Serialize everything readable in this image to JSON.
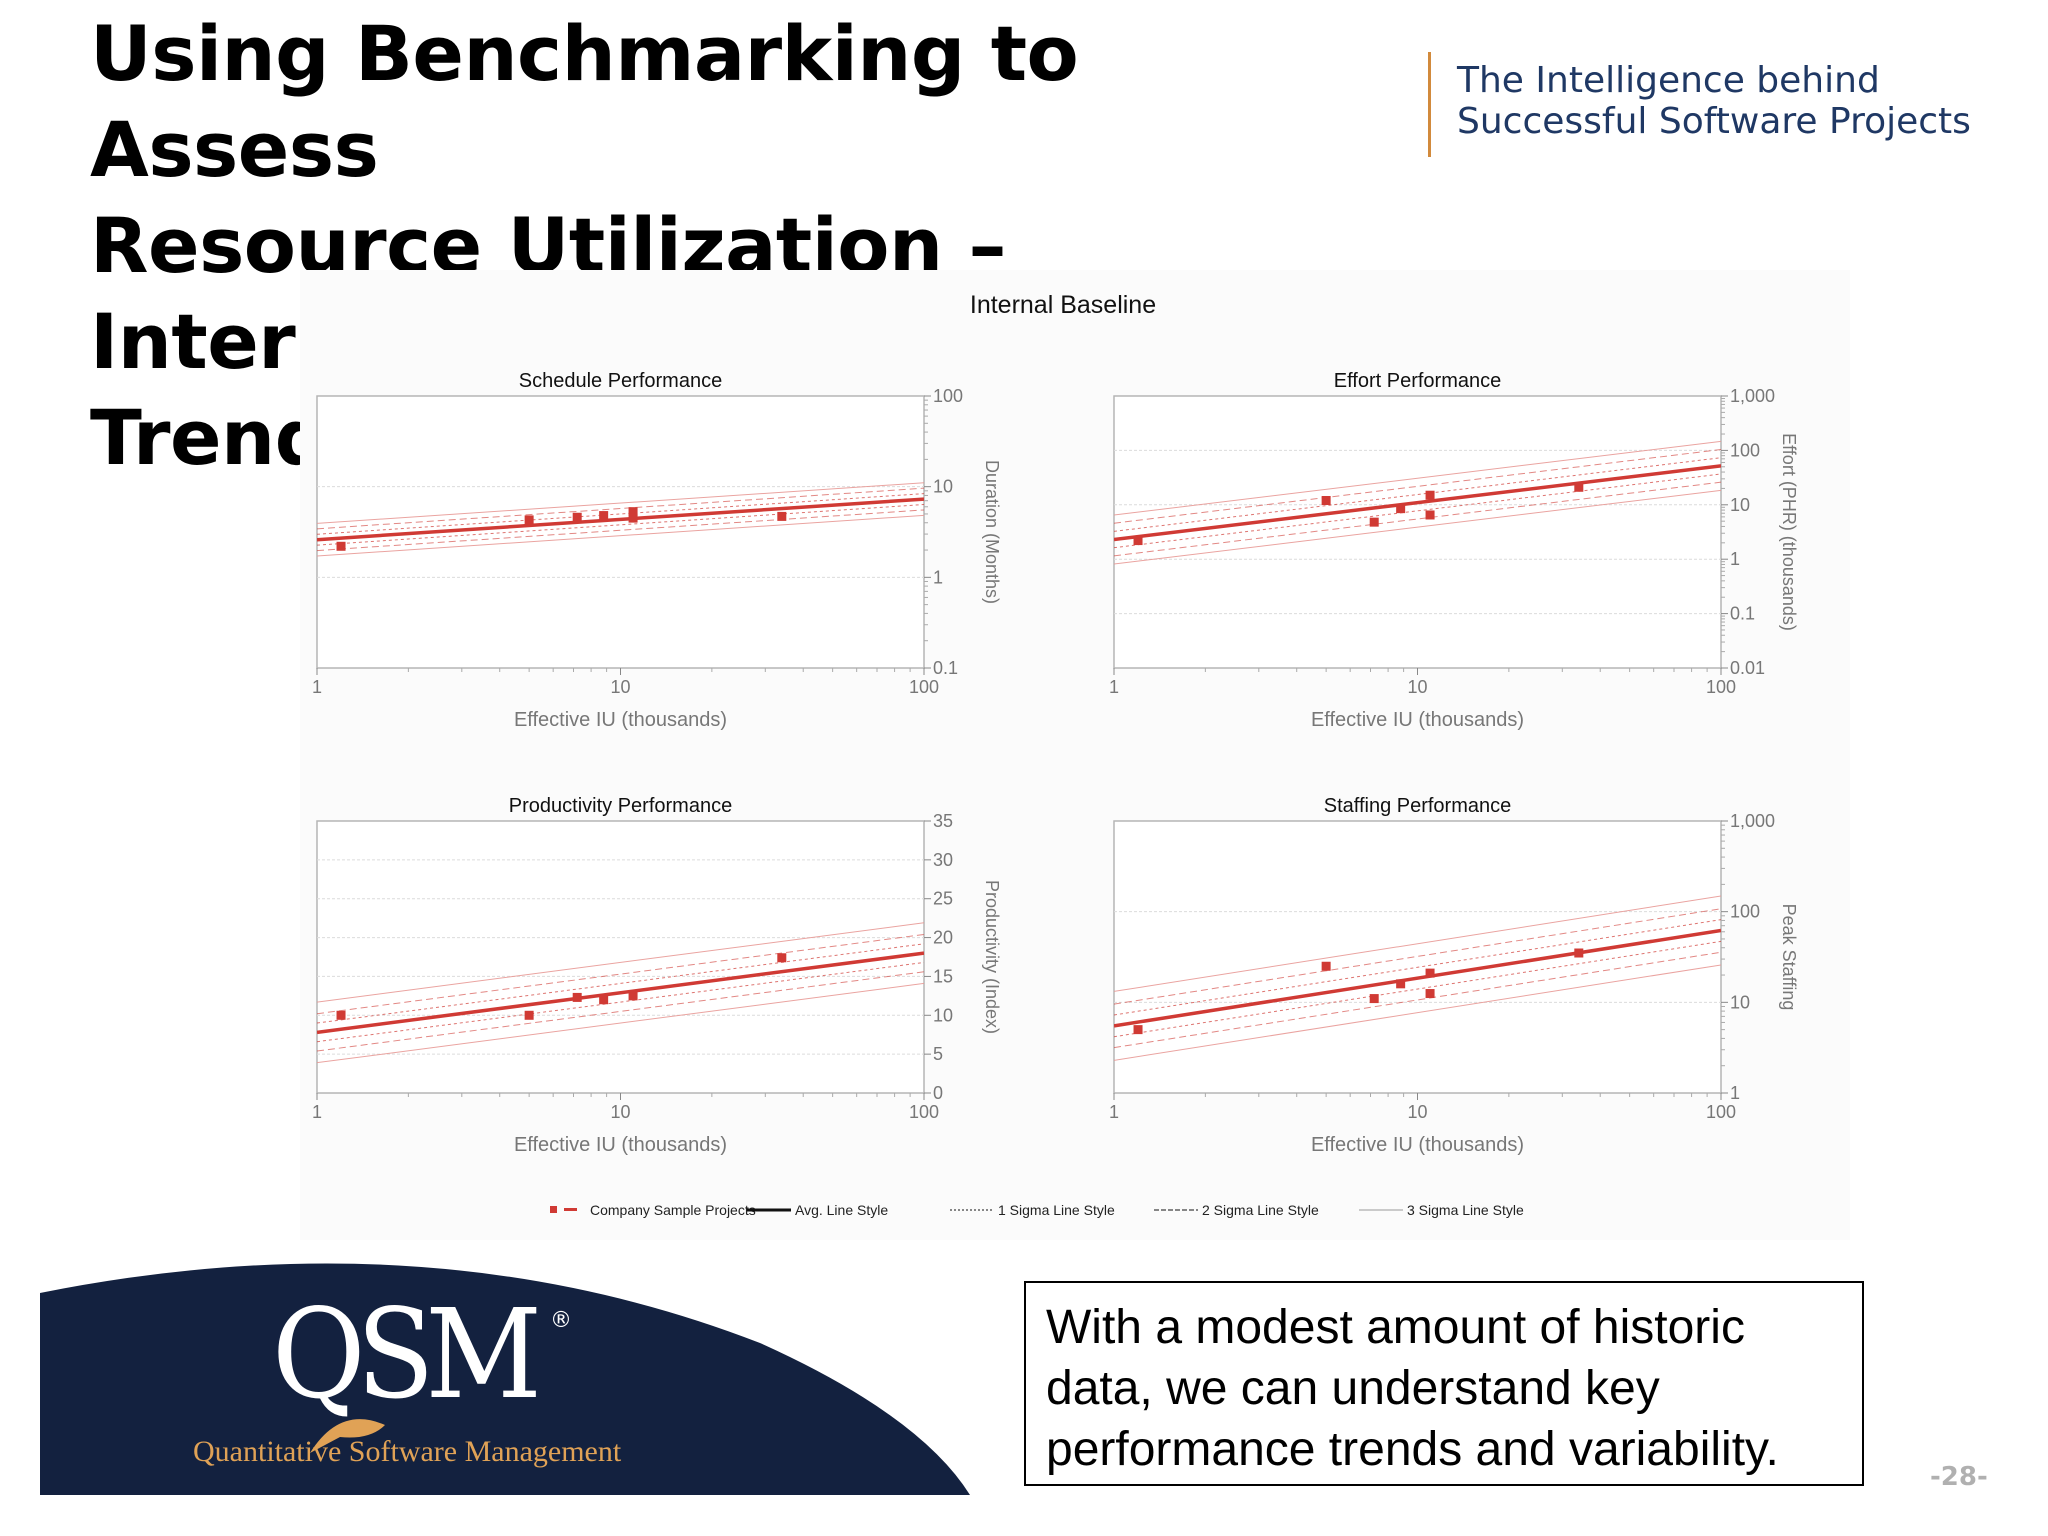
{
  "slide": {
    "title_lines": [
      "Using Benchmarking to Assess",
      "Resource Utilization – Internal",
      "Trends"
    ],
    "tagline_lines": [
      "The Intelligence behind",
      "Successful Software Projects"
    ],
    "note_lines": [
      "With a modest amount of historic",
      "data, we can understand key",
      "performance trends and variability."
    ],
    "page_number": "-28-",
    "logo": {
      "text": "QSM",
      "registered": "®",
      "subtitle": "Quantitative Software Management"
    },
    "colors": {
      "title": "#000000",
      "tagline": "#1f3864",
      "accent_bar": "#d28a3c",
      "logo_bg": "#13213f",
      "logo_sub": "#e0a256",
      "data": "#d03a34"
    }
  },
  "chart_data": {
    "title": "Internal Baseline",
    "legend": [
      {
        "label": "Company Sample Projects",
        "style": "points"
      },
      {
        "label": "Avg. Line Style",
        "style": "avg"
      },
      {
        "label": "1 Sigma Line Style",
        "style": "sigma1"
      },
      {
        "label": "2 Sigma Line Style",
        "style": "sigma2"
      },
      {
        "label": "3 Sigma Line Style",
        "style": "sigma3"
      }
    ],
    "legend_position": "bottom",
    "charts": [
      {
        "type": "scatter",
        "title": "Schedule Performance",
        "xlabel": "Effective IU (thousands)",
        "ylabel": "Duration (Months)",
        "xscale": "log",
        "yscale": "log",
        "xlim": [
          1,
          100
        ],
        "ylim": [
          0.1,
          100
        ],
        "xticks": [
          {
            "v": 1,
            "label": "1"
          },
          {
            "v": 10,
            "label": "10"
          },
          {
            "v": 100,
            "label": "100"
          }
        ],
        "yticks": [
          {
            "v": 0.1,
            "label": "0.1"
          },
          {
            "v": 1,
            "label": "1"
          },
          {
            "v": 10,
            "label": "10"
          },
          {
            "v": 100,
            "label": "100"
          }
        ],
        "points": [
          [
            1.2,
            2.2
          ],
          [
            5,
            4.3
          ],
          [
            7.2,
            4.6
          ],
          [
            8.8,
            4.8
          ],
          [
            11,
            5.3
          ],
          [
            11,
            4.5
          ],
          [
            34,
            4.7
          ]
        ],
        "trend": {
          "x": [
            1,
            100
          ],
          "avg": [
            2.6,
            7.3
          ],
          "sigma_offsets": [
            0.06,
            0.12,
            0.18
          ]
        }
      },
      {
        "type": "scatter",
        "title": "Effort Performance",
        "xlabel": "Effective IU (thousands)",
        "ylabel": "Effort (PHR) (thousands)",
        "xscale": "log",
        "yscale": "log",
        "xlim": [
          1,
          100
        ],
        "ylim": [
          0.01,
          1000
        ],
        "xticks": [
          {
            "v": 1,
            "label": "1"
          },
          {
            "v": 10,
            "label": "10"
          },
          {
            "v": 100,
            "label": "100"
          }
        ],
        "yticks": [
          {
            "v": 0.01,
            "label": "0.01"
          },
          {
            "v": 0.1,
            "label": "0.1"
          },
          {
            "v": 1,
            "label": "1"
          },
          {
            "v": 10,
            "label": "10"
          },
          {
            "v": 100,
            "label": "100"
          },
          {
            "v": 1000,
            "label": "1,000"
          }
        ],
        "points": [
          [
            1.2,
            2.2
          ],
          [
            5,
            12
          ],
          [
            7.2,
            4.8
          ],
          [
            8.8,
            8.5
          ],
          [
            11,
            6.5
          ],
          [
            11,
            15
          ],
          [
            34,
            21
          ]
        ],
        "trend": {
          "x": [
            1,
            100
          ],
          "avg": [
            2.3,
            52
          ],
          "sigma_offsets": [
            0.15,
            0.3,
            0.45
          ]
        }
      },
      {
        "type": "scatter",
        "title": "Productivity Performance",
        "xlabel": "Effective IU (thousands)",
        "ylabel": "Productivity (Index)",
        "xscale": "log",
        "yscale": "linear",
        "xlim": [
          1,
          100
        ],
        "ylim": [
          0,
          35
        ],
        "xticks": [
          {
            "v": 1,
            "label": "1"
          },
          {
            "v": 10,
            "label": "10"
          },
          {
            "v": 100,
            "label": "100"
          }
        ],
        "yticks": [
          {
            "v": 0,
            "label": "0"
          },
          {
            "v": 5,
            "label": "5"
          },
          {
            "v": 10,
            "label": "10"
          },
          {
            "v": 15,
            "label": "15"
          },
          {
            "v": 20,
            "label": "20"
          },
          {
            "v": 25,
            "label": "25"
          },
          {
            "v": 30,
            "label": "30"
          },
          {
            "v": 35,
            "label": "35"
          }
        ],
        "points": [
          [
            1.2,
            10
          ],
          [
            5,
            10
          ],
          [
            7.2,
            12.3
          ],
          [
            8.8,
            12
          ],
          [
            11,
            12.5
          ],
          [
            34,
            17.4
          ]
        ],
        "trend": {
          "x": [
            1,
            100
          ],
          "avg": [
            7.8,
            18
          ],
          "sigma_offsets": [
            1.2,
            2.4,
            3.9
          ]
        }
      },
      {
        "type": "scatter",
        "title": "Staffing Performance",
        "xlabel": "Effective IU (thousands)",
        "ylabel": "Peak Staffing",
        "xscale": "log",
        "yscale": "log",
        "xlim": [
          1,
          100
        ],
        "ylim": [
          1,
          1000
        ],
        "xticks": [
          {
            "v": 1,
            "label": "1"
          },
          {
            "v": 10,
            "label": "10"
          },
          {
            "v": 100,
            "label": "100"
          }
        ],
        "yticks": [
          {
            "v": 1,
            "label": "1"
          },
          {
            "v": 10,
            "label": "10"
          },
          {
            "v": 100,
            "label": "100"
          },
          {
            "v": 1000,
            "label": "1,000"
          }
        ],
        "points": [
          [
            1.2,
            5
          ],
          [
            5,
            25
          ],
          [
            7.2,
            11
          ],
          [
            8.8,
            16
          ],
          [
            11,
            21
          ],
          [
            11,
            12.5
          ],
          [
            34,
            35
          ]
        ],
        "trend": {
          "x": [
            1,
            100
          ],
          "avg": [
            5.5,
            62
          ],
          "sigma_offsets": [
            0.12,
            0.24,
            0.38
          ]
        }
      }
    ]
  }
}
